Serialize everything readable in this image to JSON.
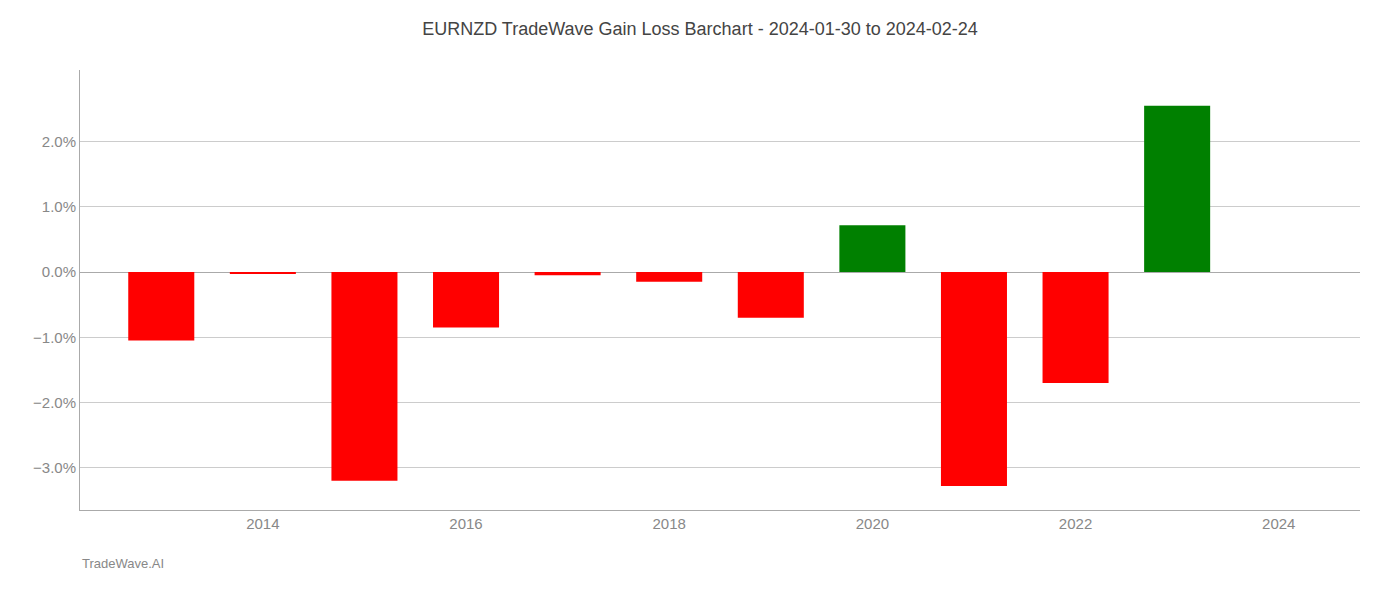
{
  "chart_data": {
    "type": "bar",
    "title": "EURNZD TradeWave Gain Loss Barchart - 2024-01-30 to 2024-02-24",
    "annotations": [
      "TradeWave.AI"
    ],
    "x": [
      2013,
      2014,
      2015,
      2016,
      2017,
      2018,
      2019,
      2020,
      2021,
      2022,
      2023
    ],
    "values": [
      -1.05,
      -0.03,
      -3.2,
      -0.85,
      -0.05,
      -0.15,
      -0.7,
      0.72,
      -3.28,
      -1.7,
      2.55
    ],
    "colors": [
      "#ff0000",
      "#ff0000",
      "#ff0000",
      "#ff0000",
      "#ff0000",
      "#ff0000",
      "#ff0000",
      "#008000",
      "#ff0000",
      "#ff0000",
      "#008000"
    ],
    "xlim": [
      2012.2,
      2024.8
    ],
    "xticks": [
      2014,
      2016,
      2018,
      2020,
      2022,
      2024
    ],
    "ylim": [
      -3.65,
      3.1
    ],
    "yticks": [
      {
        "value": -3.0,
        "label": "−3.0%"
      },
      {
        "value": -2.0,
        "label": "−2.0%"
      },
      {
        "value": -1.0,
        "label": "−1.0%"
      },
      {
        "value": 0.0,
        "label": "0.0%"
      },
      {
        "value": 1.0,
        "label": "1.0%"
      },
      {
        "value": 2.0,
        "label": "2.0%"
      }
    ],
    "grid": true
  }
}
